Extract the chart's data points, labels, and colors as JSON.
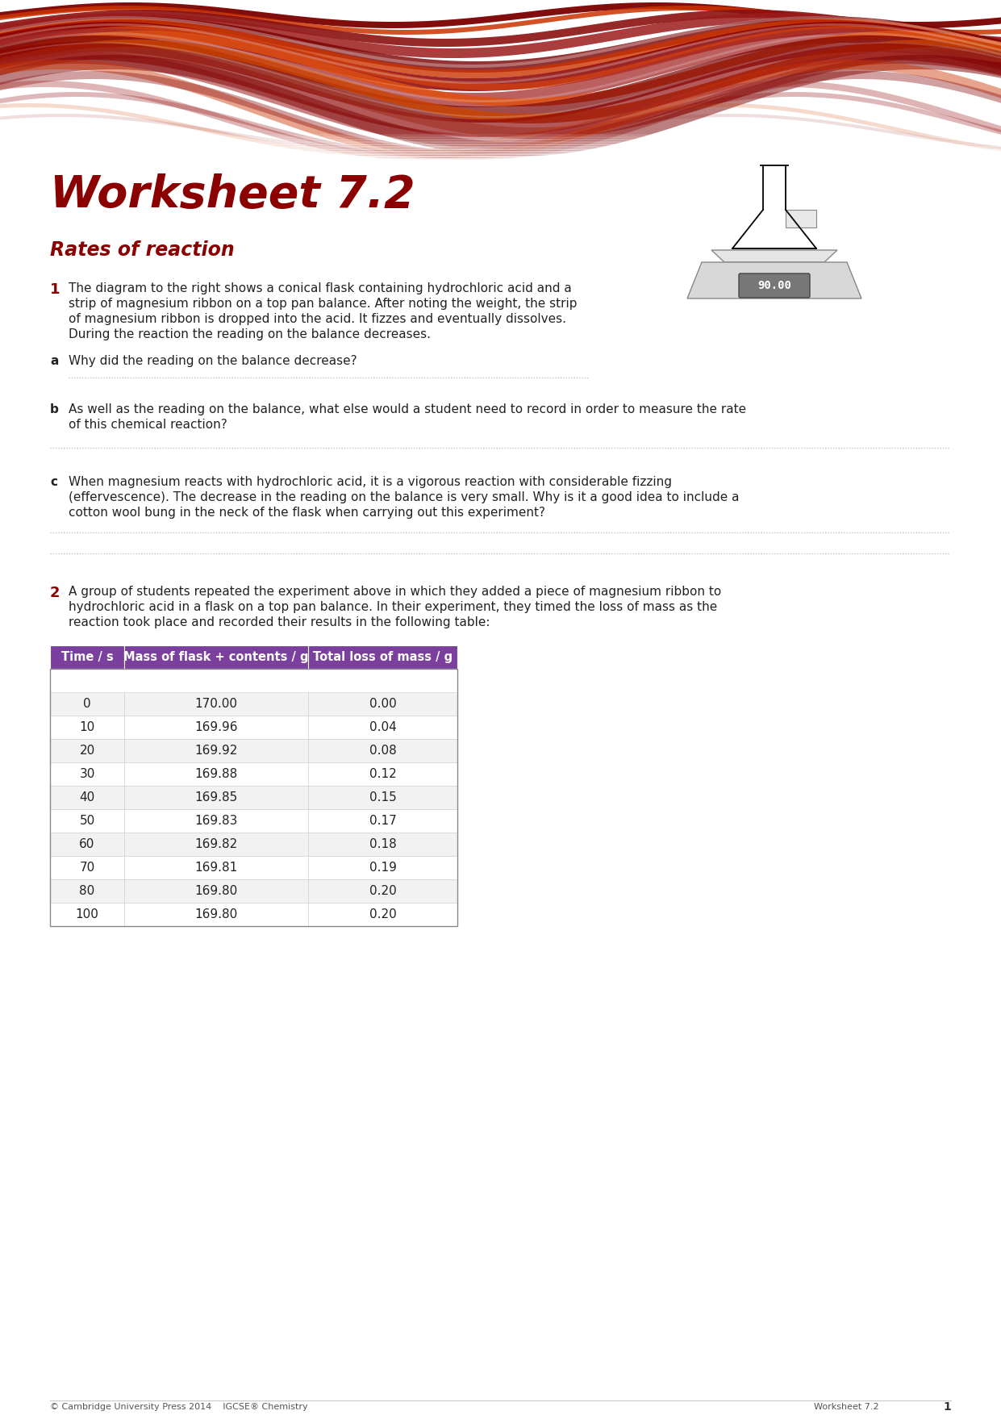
{
  "title": "Worksheet 7.2",
  "subtitle": "Rates of reaction",
  "title_color": "#8B0000",
  "subtitle_color": "#8B0000",
  "background_color": "#FFFFFF",
  "q1_number": "1",
  "q1_lines": [
    "The diagram to the right shows a conical flask containing hydrochloric acid and a",
    "strip of magnesium ribbon on a top pan balance. After noting the weight, the strip",
    "of magnesium ribbon is dropped into the acid. It fizzes and eventually dissolves.",
    "During the reaction the reading on the balance decreases."
  ],
  "qa_label": "a",
  "qa_text": "Why did the reading on the balance decrease?",
  "qb_label": "b",
  "qb_lines": [
    "As well as the reading on the balance, what else would a student need to record in order to measure the rate",
    "of this chemical reaction?"
  ],
  "qc_label": "c",
  "qc_lines": [
    "When magnesium reacts with hydrochloric acid, it is a vigorous reaction with considerable fizzing",
    "(effervescence). The decrease in the reading on the balance is very small. Why is it a good idea to include a",
    "cotton wool bung in the neck of the flask when carrying out this experiment?"
  ],
  "q2_number": "2",
  "q2_lines": [
    "A group of students repeated the experiment above in which they added a piece of magnesium ribbon to",
    "hydrochloric acid in a flask on a top pan balance. In their experiment, they timed the loss of mass as the",
    "reaction took place and recorded their results in the following table:"
  ],
  "table_headers": [
    "Time / s",
    "Mass of flask + contents / g",
    "Total loss of mass / g"
  ],
  "table_data": [
    [
      "0",
      "170.00",
      "0.00"
    ],
    [
      "10",
      "169.96",
      "0.04"
    ],
    [
      "20",
      "169.92",
      "0.08"
    ],
    [
      "30",
      "169.88",
      "0.12"
    ],
    [
      "40",
      "169.85",
      "0.15"
    ],
    [
      "50",
      "169.83",
      "0.17"
    ],
    [
      "60",
      "169.82",
      "0.18"
    ],
    [
      "70",
      "169.81",
      "0.19"
    ],
    [
      "80",
      "169.80",
      "0.20"
    ],
    [
      "100",
      "169.80",
      "0.20"
    ]
  ],
  "table_header_bg": "#7B3F9E",
  "table_header_text": "#FFFFFF",
  "footer_left": "© Cambridge University Press 2014    IGCSE® Chemistry",
  "footer_right": "Worksheet 7.2",
  "footer_page": "1",
  "dotted_line_color": "#BBBBBB",
  "text_color": "#222222",
  "number_color": "#8B0000",
  "balance_display": "90.00"
}
